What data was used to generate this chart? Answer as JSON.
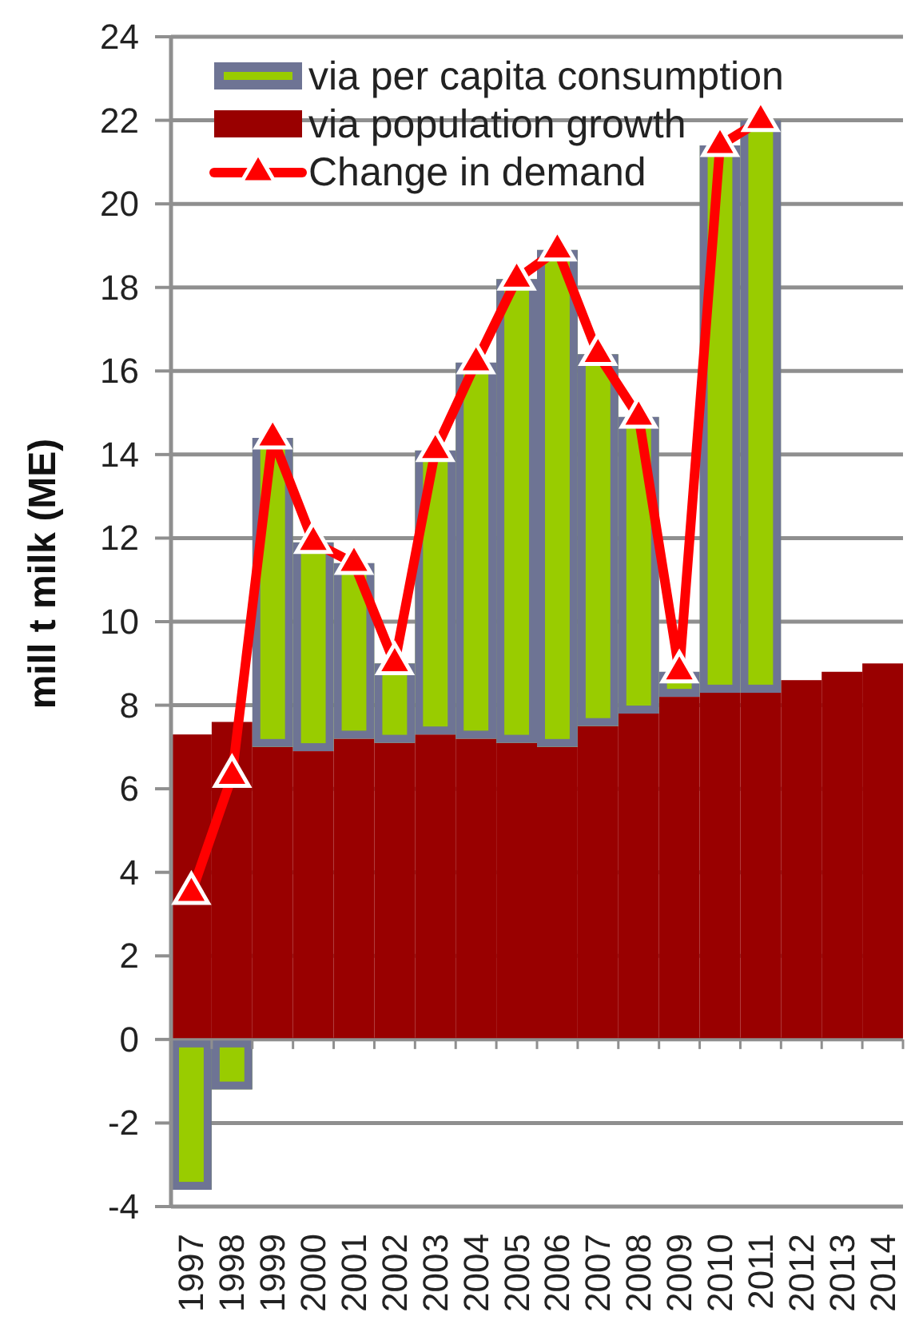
{
  "chart_data": {
    "type": "bar",
    "ylabel": "mill t milk (ME)",
    "categories": [
      "1997",
      "1998",
      "1999",
      "2000",
      "2001",
      "2002",
      "2003",
      "2004",
      "2005",
      "2006",
      "2007",
      "2008",
      "2009",
      "2010",
      "2011",
      "2012",
      "2013",
      "2014"
    ],
    "series": [
      {
        "name": "via population growth",
        "color": "#990000",
        "values": [
          7.3,
          7.6,
          7.0,
          6.9,
          7.2,
          7.1,
          7.3,
          7.2,
          7.1,
          7.0,
          7.5,
          7.8,
          8.2,
          8.3,
          8.3,
          8.6,
          8.8,
          9.0
        ]
      },
      {
        "name": "via per capita consumption",
        "color": "#99cc00",
        "values": [
          -3.6,
          -1.2,
          7.4,
          5.0,
          4.2,
          1.9,
          6.8,
          9.0,
          11.1,
          11.9,
          8.9,
          7.1,
          0.6,
          13.1,
          13.7,
          null,
          null,
          null
        ]
      },
      {
        "name": "Change in demand",
        "type": "line",
        "color": "#ff0000",
        "values": [
          3.5,
          6.3,
          14.4,
          11.9,
          11.4,
          9.0,
          14.1,
          16.2,
          18.2,
          18.9,
          16.4,
          14.9,
          8.8,
          21.4,
          22.0,
          null,
          null,
          null
        ]
      }
    ],
    "stacked": true,
    "ylim": [
      -4,
      24
    ],
    "yticks": [
      -4,
      -2,
      0,
      2,
      4,
      6,
      8,
      10,
      12,
      14,
      16,
      18,
      20,
      22,
      24
    ],
    "grid": "y",
    "legend": "top left",
    "marker": "triangle"
  }
}
